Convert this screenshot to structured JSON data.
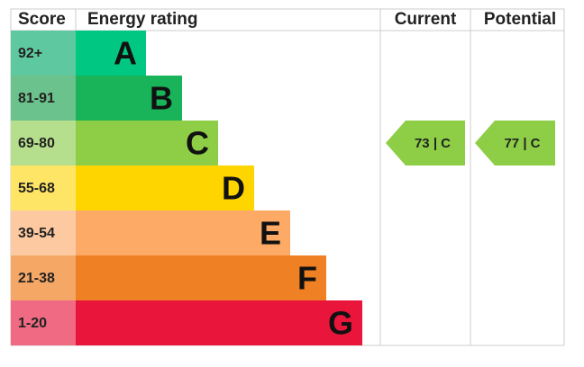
{
  "header": {
    "score": "Score",
    "rating": "Energy rating",
    "current": "Current",
    "potential": "Potential"
  },
  "bands": [
    {
      "score": "92+",
      "letter": "A",
      "color": "#00c781",
      "score_color": "#5ec8a0"
    },
    {
      "score": "81-91",
      "letter": "B",
      "color": "#19b459",
      "score_color": "#6cc28c"
    },
    {
      "score": "69-80",
      "letter": "C",
      "color": "#8dce46",
      "score_color": "#b5df8c"
    },
    {
      "score": "55-68",
      "letter": "D",
      "color": "#ffd500",
      "score_color": "#ffe565"
    },
    {
      "score": "39-54",
      "letter": "E",
      "color": "#fcaa65",
      "score_color": "#fdc9a1"
    },
    {
      "score": "21-38",
      "letter": "F",
      "color": "#ef8023",
      "score_color": "#f5a766"
    },
    {
      "score": "1-20",
      "letter": "G",
      "color": "#e9153b",
      "score_color": "#ef6a82"
    }
  ],
  "current": {
    "label": "73 | C",
    "band": 2
  },
  "potential": {
    "label": "77 | C",
    "band": 2
  }
}
